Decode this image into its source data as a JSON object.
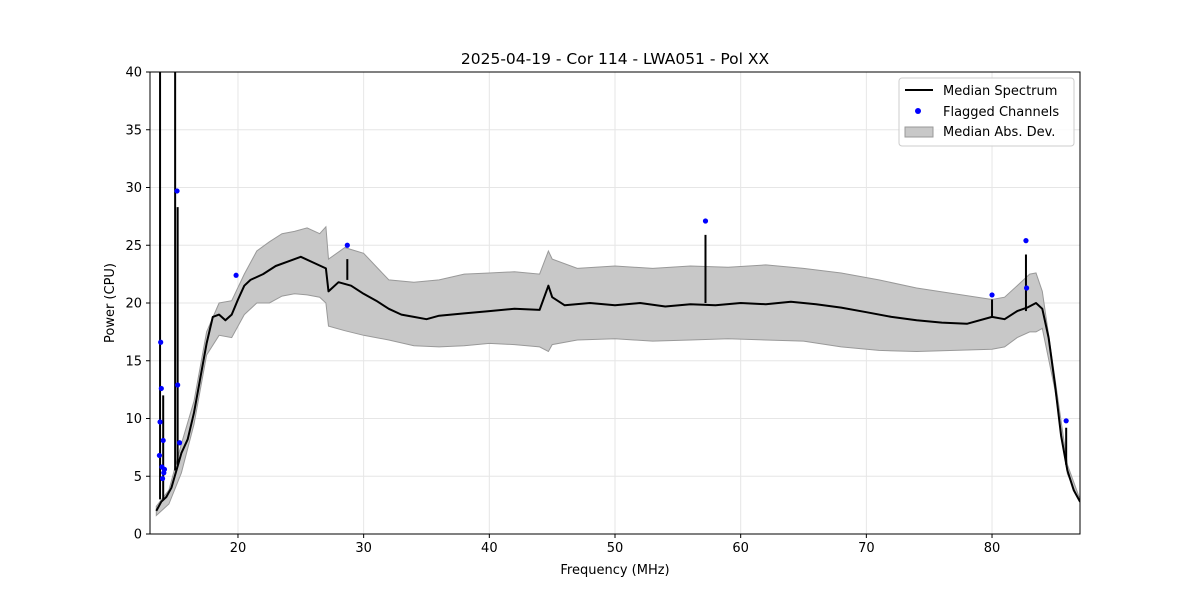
{
  "chart_data": {
    "type": "line",
    "title": "2025-04-19 - Cor 114 - LWA051 - Pol XX",
    "xlabel": "Frequency (MHz)",
    "ylabel": "Power (CPU)",
    "xlim": [
      13,
      87
    ],
    "ylim": [
      0,
      40
    ],
    "xticks": [
      20,
      30,
      40,
      50,
      60,
      70,
      80
    ],
    "yticks": [
      0,
      5,
      10,
      15,
      20,
      25,
      30,
      35,
      40
    ],
    "grid": true,
    "legend_position": "top-right",
    "colors": {
      "median": "#000000",
      "flagged": "#0000ff",
      "band_fill": "#c8c8c8",
      "band_edge": "#999999",
      "grid": "#e6e6e6"
    },
    "series": [
      {
        "name": "Median Spectrum",
        "kind": "line",
        "x": [
          13.5,
          13.9,
          14.3,
          14.7,
          15.1,
          15.5,
          16.0,
          16.5,
          17.0,
          17.5,
          18.0,
          18.5,
          19.0,
          19.5,
          20.0,
          20.5,
          21.0,
          22.0,
          23.0,
          24.0,
          25.0,
          26.0,
          27.0,
          27.2,
          28.0,
          29.0,
          30.0,
          31.0,
          32.0,
          33.0,
          34.0,
          35.0,
          36.0,
          38.0,
          40.0,
          42.0,
          44.0,
          44.7,
          45.0,
          46.0,
          48.0,
          50.0,
          52.0,
          54.0,
          56.0,
          58.0,
          60.0,
          62.0,
          64.0,
          66.0,
          68.0,
          70.0,
          72.0,
          74.0,
          76.0,
          78.0,
          80.0,
          81.0,
          82.0,
          82.8,
          83.5,
          84.0,
          84.5,
          85.0,
          85.5,
          86.0,
          86.5,
          87.0
        ],
        "values": [
          2.0,
          2.8,
          3.2,
          4.0,
          5.5,
          7.0,
          8.2,
          10.5,
          13.5,
          16.5,
          18.8,
          19.0,
          18.5,
          19.0,
          20.3,
          21.5,
          22.0,
          22.5,
          23.2,
          23.6,
          24.0,
          23.5,
          23.0,
          21.0,
          21.8,
          21.5,
          20.8,
          20.2,
          19.5,
          19.0,
          18.8,
          18.6,
          18.9,
          19.1,
          19.3,
          19.5,
          19.4,
          21.5,
          20.5,
          19.8,
          20.0,
          19.8,
          20.0,
          19.7,
          19.9,
          19.8,
          20.0,
          19.9,
          20.1,
          19.9,
          19.6,
          19.2,
          18.8,
          18.5,
          18.3,
          18.2,
          18.8,
          18.6,
          19.3,
          19.6,
          20.0,
          19.5,
          17.0,
          13.0,
          8.5,
          5.5,
          3.8,
          2.8
        ]
      },
      {
        "name": "Median Abs. Dev.",
        "kind": "band",
        "x": [
          13.5,
          14.5,
          15.5,
          16.5,
          17.5,
          18.5,
          19.5,
          20.5,
          21.5,
          22.5,
          23.5,
          24.5,
          25.5,
          26.5,
          27.0,
          27.2,
          28.5,
          30.0,
          32.0,
          34.0,
          36.0,
          38.0,
          40.0,
          42.0,
          44.0,
          44.7,
          45.0,
          47.0,
          50.0,
          53.0,
          56.0,
          59.0,
          62.0,
          65.0,
          68.0,
          71.0,
          74.0,
          77.0,
          80.0,
          81.0,
          82.0,
          83.0,
          83.5,
          84.0,
          85.0,
          86.0,
          87.0
        ],
        "upper": [
          2.4,
          3.8,
          7.8,
          11.5,
          17.5,
          20.0,
          20.2,
          22.5,
          24.5,
          25.3,
          26.0,
          26.2,
          26.5,
          26.0,
          26.6,
          23.8,
          24.8,
          24.3,
          22.0,
          21.8,
          22.0,
          22.5,
          22.6,
          22.7,
          22.5,
          24.5,
          23.8,
          23.0,
          23.2,
          23.0,
          23.2,
          23.1,
          23.3,
          23.0,
          22.6,
          22.0,
          21.3,
          20.8,
          20.3,
          20.5,
          21.5,
          22.5,
          22.6,
          21.0,
          13.5,
          6.0,
          3.0
        ],
        "lower": [
          1.6,
          2.6,
          5.3,
          9.5,
          15.5,
          17.2,
          17.0,
          19.0,
          20.0,
          20.0,
          20.6,
          20.8,
          20.7,
          20.5,
          20.0,
          18.0,
          17.6,
          17.2,
          16.8,
          16.3,
          16.2,
          16.3,
          16.5,
          16.4,
          16.2,
          15.8,
          16.4,
          16.8,
          16.9,
          16.7,
          16.8,
          16.9,
          16.8,
          16.7,
          16.2,
          15.9,
          15.8,
          15.9,
          16.0,
          16.2,
          17.0,
          17.5,
          17.5,
          17.8,
          12.5,
          5.2,
          2.7
        ]
      },
      {
        "name": "Flagged Channels",
        "kind": "scatter",
        "x": [
          13.75,
          13.8,
          13.85,
          13.9,
          13.95,
          14.0,
          14.05,
          14.1,
          14.15,
          15.15,
          15.2,
          15.35,
          19.85,
          28.7,
          57.2,
          80.0,
          82.7,
          82.75,
          85.9
        ],
        "values": [
          6.8,
          9.7,
          16.6,
          12.6,
          5.8,
          4.8,
          8.1,
          5.3,
          5.6,
          29.7,
          12.9,
          7.9,
          22.4,
          25.0,
          27.1,
          20.7,
          25.4,
          21.3,
          9.8
        ]
      }
    ],
    "spikes": [
      {
        "x": 13.8,
        "from": 3.0,
        "to": 40.0
      },
      {
        "x": 14.05,
        "from": 3.0,
        "to": 12.0
      },
      {
        "x": 15.0,
        "from": 5.5,
        "to": 40.0
      },
      {
        "x": 15.2,
        "from": 6.0,
        "to": 28.3
      },
      {
        "x": 28.7,
        "from": 22.0,
        "to": 23.8
      },
      {
        "x": 57.2,
        "from": 20.0,
        "to": 25.9
      },
      {
        "x": 80.0,
        "from": 18.8,
        "to": 20.3
      },
      {
        "x": 82.7,
        "from": 19.3,
        "to": 24.2
      },
      {
        "x": 85.9,
        "from": 6.0,
        "to": 9.2
      }
    ],
    "legend": [
      {
        "label": "Median Spectrum",
        "kind": "line"
      },
      {
        "label": "Flagged Channels",
        "kind": "scatter"
      },
      {
        "label": "Median Abs. Dev.",
        "kind": "band"
      }
    ]
  }
}
